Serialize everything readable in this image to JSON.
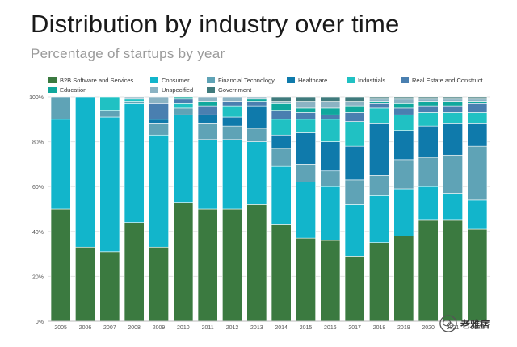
{
  "title": "Distribution by industry over time",
  "subtitle": "Percentage of startups by year",
  "watermark": "老雅痞",
  "chart_data": {
    "type": "bar",
    "stacked": true,
    "title": "Distribution by industry over time",
    "subtitle": "Percentage of startups by year",
    "xlabel": "",
    "ylabel": "",
    "ylim": [
      0,
      100
    ],
    "y_ticks": [
      0,
      20,
      40,
      60,
      80,
      100
    ],
    "y_tick_suffix": "%",
    "grid": true,
    "legend_position": "top",
    "categories": [
      "2005",
      "2006",
      "2007",
      "2008",
      "2009",
      "2010",
      "2011",
      "2012",
      "2013",
      "2014",
      "2015",
      "2016",
      "2017",
      "2018",
      "2019",
      "2020",
      "2021",
      "2022"
    ],
    "series": [
      {
        "name": "B2B Software and Services",
        "color": "#3b7a40",
        "values": [
          50,
          33,
          31,
          44,
          33,
          53,
          50,
          50,
          52,
          43,
          37,
          36,
          29,
          35,
          38,
          45,
          45,
          41
        ]
      },
      {
        "name": "Consumer",
        "color": "#12b5cb",
        "values": [
          40,
          67,
          60,
          53,
          50,
          39,
          31,
          31,
          28,
          26,
          25,
          24,
          23,
          21,
          21,
          15,
          12,
          13
        ]
      },
      {
        "name": "Financial Technology",
        "color": "#5fa3b6",
        "values": [
          10,
          0,
          3,
          1,
          5,
          3,
          7,
          6,
          6,
          8,
          8,
          7,
          11,
          9,
          13,
          13,
          17,
          24
        ]
      },
      {
        "name": "Healthcare",
        "color": "#0f7aab",
        "values": [
          0,
          0,
          0,
          0,
          2,
          0,
          4,
          4,
          10,
          6,
          14,
          13,
          15,
          23,
          13,
          14,
          14,
          10
        ]
      },
      {
        "name": "Industrials",
        "color": "#20c1c3",
        "values": [
          0,
          0,
          6,
          1,
          0,
          2,
          0,
          5,
          0,
          7,
          6,
          10,
          11,
          7,
          7,
          6,
          5,
          5
        ]
      },
      {
        "name": "Real Estate and Construct...",
        "color": "#4a7fb0",
        "values": [
          0,
          0,
          0,
          0,
          7,
          2,
          4,
          2,
          2,
          4,
          3,
          2,
          4,
          2,
          3,
          3,
          3,
          4
        ]
      },
      {
        "name": "Education",
        "color": "#0fa89d",
        "values": [
          0,
          0,
          0,
          0,
          0,
          1,
          2,
          0,
          1,
          3,
          2,
          3,
          3,
          1,
          2,
          2,
          2,
          1
        ]
      },
      {
        "name": "Unspecified",
        "color": "#8bb3c3",
        "values": [
          0,
          0,
          0,
          1,
          3,
          0,
          2,
          2,
          1,
          1,
          3,
          3,
          2,
          1,
          2,
          1,
          1,
          1
        ]
      },
      {
        "name": "Government",
        "color": "#3f7a7c",
        "values": [
          0,
          0,
          0,
          0,
          0,
          0,
          0,
          0,
          0,
          2,
          2,
          2,
          2,
          1,
          1,
          1,
          1,
          1
        ]
      }
    ]
  }
}
